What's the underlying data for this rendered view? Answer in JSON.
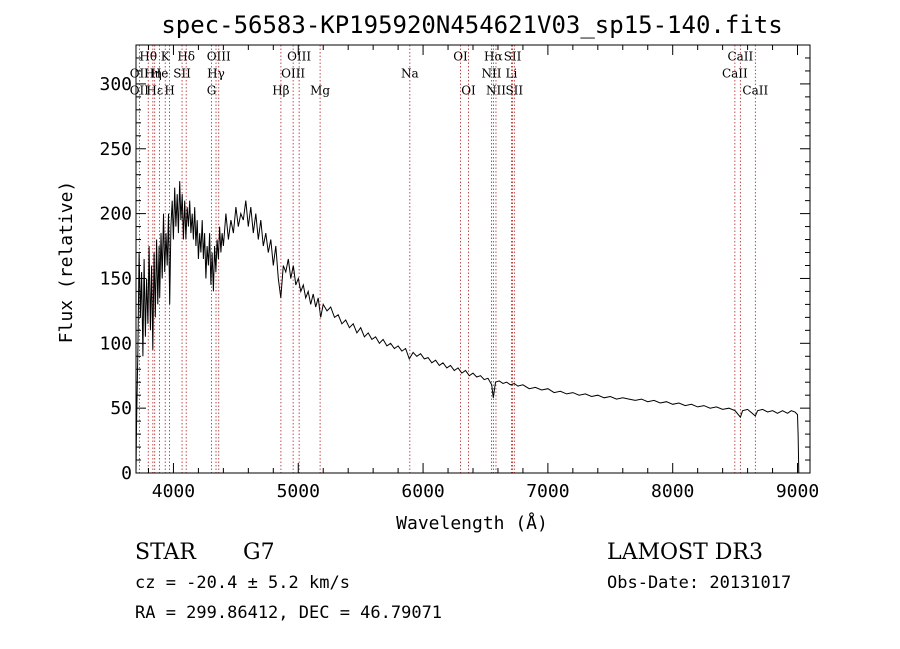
{
  "chart_data": {
    "type": "line",
    "title": "spec-56583-KP195920N454621V03_sp15-140.fits",
    "xlabel": "Wavelength (Å)",
    "ylabel": "Flux (relative)",
    "xlim": [
      3700,
      9100
    ],
    "ylim": [
      0,
      330
    ],
    "xticks": [
      4000,
      5000,
      6000,
      7000,
      8000,
      9000
    ],
    "yticks": [
      0,
      50,
      100,
      150,
      200,
      250,
      300
    ],
    "series": [
      {
        "name": "spectrum",
        "points": [
          [
            3700,
            0
          ],
          [
            3705,
            40
          ],
          [
            3715,
            95
          ],
          [
            3725,
            170
          ],
          [
            3735,
            120
          ],
          [
            3745,
            155
          ],
          [
            3755,
            90
          ],
          [
            3765,
            165
          ],
          [
            3775,
            105
          ],
          [
            3785,
            150
          ],
          [
            3795,
            115
          ],
          [
            3805,
            175
          ],
          [
            3815,
            110
          ],
          [
            3825,
            160
          ],
          [
            3835,
            95
          ],
          [
            3845,
            170
          ],
          [
            3855,
            120
          ],
          [
            3865,
            180
          ],
          [
            3875,
            130
          ],
          [
            3885,
            175
          ],
          [
            3890,
            135
          ],
          [
            3900,
            185
          ],
          [
            3910,
            150
          ],
          [
            3920,
            200
          ],
          [
            3930,
            155
          ],
          [
            3940,
            185
          ],
          [
            3950,
            160
          ],
          [
            3960,
            200
          ],
          [
            3970,
            130
          ],
          [
            3980,
            190
          ],
          [
            3990,
            210
          ],
          [
            4000,
            180
          ],
          [
            4010,
            220
          ],
          [
            4020,
            190
          ],
          [
            4030,
            215
          ],
          [
            4040,
            185
          ],
          [
            4050,
            225
          ],
          [
            4060,
            195
          ],
          [
            4070,
            215
          ],
          [
            4080,
            180
          ],
          [
            4090,
            210
          ],
          [
            4100,
            180
          ],
          [
            4110,
            205
          ],
          [
            4120,
            190
          ],
          [
            4130,
            210
          ],
          [
            4140,
            185
          ],
          [
            4150,
            200
          ],
          [
            4160,
            180
          ],
          [
            4170,
            205
          ],
          [
            4180,
            175
          ],
          [
            4190,
            195
          ],
          [
            4200,
            165
          ],
          [
            4210,
            185
          ],
          [
            4220,
            170
          ],
          [
            4230,
            195
          ],
          [
            4240,
            165
          ],
          [
            4250,
            185
          ],
          [
            4260,
            150
          ],
          [
            4270,
            175
          ],
          [
            4280,
            160
          ],
          [
            4290,
            185
          ],
          [
            4300,
            145
          ],
          [
            4310,
            170
          ],
          [
            4320,
            140
          ],
          [
            4330,
            175
          ],
          [
            4340,
            155
          ],
          [
            4350,
            180
          ],
          [
            4360,
            165
          ],
          [
            4370,
            190
          ],
          [
            4380,
            170
          ],
          [
            4390,
            185
          ],
          [
            4400,
            175
          ],
          [
            4420,
            200
          ],
          [
            4440,
            180
          ],
          [
            4460,
            195
          ],
          [
            4480,
            185
          ],
          [
            4500,
            205
          ],
          [
            4520,
            190
          ],
          [
            4540,
            200
          ],
          [
            4560,
            195
          ],
          [
            4580,
            210
          ],
          [
            4600,
            190
          ],
          [
            4620,
            205
          ],
          [
            4640,
            185
          ],
          [
            4660,
            200
          ],
          [
            4680,
            180
          ],
          [
            4700,
            195
          ],
          [
            4720,
            175
          ],
          [
            4740,
            185
          ],
          [
            4760,
            170
          ],
          [
            4780,
            180
          ],
          [
            4800,
            160
          ],
          [
            4820,
            175
          ],
          [
            4840,
            150
          ],
          [
            4860,
            135
          ],
          [
            4880,
            160
          ],
          [
            4900,
            155
          ],
          [
            4920,
            165
          ],
          [
            4940,
            150
          ],
          [
            4960,
            160
          ],
          [
            4980,
            145
          ],
          [
            5000,
            150
          ],
          [
            5020,
            140
          ],
          [
            5040,
            145
          ],
          [
            5060,
            135
          ],
          [
            5080,
            140
          ],
          [
            5100,
            130
          ],
          [
            5120,
            138
          ],
          [
            5140,
            128
          ],
          [
            5160,
            135
          ],
          [
            5180,
            120
          ],
          [
            5200,
            130
          ],
          [
            5230,
            125
          ],
          [
            5260,
            128
          ],
          [
            5290,
            120
          ],
          [
            5320,
            122
          ],
          [
            5350,
            115
          ],
          [
            5380,
            118
          ],
          [
            5410,
            112
          ],
          [
            5440,
            115
          ],
          [
            5470,
            108
          ],
          [
            5500,
            112
          ],
          [
            5530,
            105
          ],
          [
            5560,
            108
          ],
          [
            5590,
            103
          ],
          [
            5620,
            105
          ],
          [
            5650,
            100
          ],
          [
            5680,
            103
          ],
          [
            5710,
            98
          ],
          [
            5740,
            100
          ],
          [
            5770,
            96
          ],
          [
            5800,
            98
          ],
          [
            5830,
            94
          ],
          [
            5860,
            96
          ],
          [
            5890,
            88
          ],
          [
            5920,
            93
          ],
          [
            5950,
            90
          ],
          [
            5980,
            92
          ],
          [
            6010,
            88
          ],
          [
            6040,
            89
          ],
          [
            6070,
            85
          ],
          [
            6100,
            87
          ],
          [
            6130,
            83
          ],
          [
            6160,
            85
          ],
          [
            6190,
            81
          ],
          [
            6220,
            83
          ],
          [
            6250,
            79
          ],
          [
            6280,
            81
          ],
          [
            6310,
            77
          ],
          [
            6340,
            79
          ],
          [
            6370,
            75
          ],
          [
            6400,
            77
          ],
          [
            6430,
            74
          ],
          [
            6460,
            75
          ],
          [
            6490,
            72
          ],
          [
            6520,
            73
          ],
          [
            6550,
            68
          ],
          [
            6563,
            58
          ],
          [
            6580,
            70
          ],
          [
            6610,
            71
          ],
          [
            6640,
            69
          ],
          [
            6670,
            70
          ],
          [
            6700,
            68
          ],
          [
            6730,
            69
          ],
          [
            6760,
            67
          ],
          [
            6800,
            68
          ],
          [
            6850,
            65
          ],
          [
            6900,
            66
          ],
          [
            6950,
            64
          ],
          [
            7000,
            65
          ],
          [
            7050,
            62
          ],
          [
            7100,
            63
          ],
          [
            7150,
            61
          ],
          [
            7200,
            62
          ],
          [
            7250,
            60
          ],
          [
            7300,
            61
          ],
          [
            7350,
            59
          ],
          [
            7400,
            60
          ],
          [
            7450,
            58
          ],
          [
            7500,
            59
          ],
          [
            7550,
            57
          ],
          [
            7600,
            58
          ],
          [
            7650,
            57
          ],
          [
            7700,
            56
          ],
          [
            7750,
            57
          ],
          [
            7800,
            55
          ],
          [
            7850,
            56
          ],
          [
            7900,
            54
          ],
          [
            7950,
            55
          ],
          [
            8000,
            53
          ],
          [
            8050,
            54
          ],
          [
            8100,
            52
          ],
          [
            8150,
            53
          ],
          [
            8200,
            51
          ],
          [
            8250,
            52
          ],
          [
            8300,
            50
          ],
          [
            8350,
            51
          ],
          [
            8400,
            49
          ],
          [
            8450,
            50
          ],
          [
            8500,
            48
          ],
          [
            8542,
            43
          ],
          [
            8560,
            48
          ],
          [
            8600,
            49
          ],
          [
            8662,
            44
          ],
          [
            8680,
            48
          ],
          [
            8720,
            49
          ],
          [
            8760,
            47
          ],
          [
            8800,
            48
          ],
          [
            8840,
            46
          ],
          [
            8880,
            48
          ],
          [
            8920,
            46
          ],
          [
            8950,
            48
          ],
          [
            8980,
            47
          ],
          [
            9000,
            45
          ],
          [
            9005,
            30
          ],
          [
            9010,
            0
          ]
        ]
      }
    ],
    "spectral_lines": [
      {
        "label": "Hθ",
        "wavelength": 3798,
        "row": 1
      },
      {
        "label": "OII",
        "wavelength": 3727,
        "row": 2
      },
      {
        "label": "Hη",
        "wavelength": 3835,
        "row": 2
      },
      {
        "label": "OII",
        "wavelength": 3727,
        "row": 3
      },
      {
        "label": "Hε",
        "wavelength": 3850,
        "row": 3
      },
      {
        "label": "K",
        "wavelength": 3934,
        "row": 1
      },
      {
        "label": "He",
        "wavelength": 3889,
        "row": 2
      },
      {
        "label": "H",
        "wavelength": 3969,
        "row": 3
      },
      {
        "label": "Hδ",
        "wavelength": 4102,
        "row": 1
      },
      {
        "label": "SII",
        "wavelength": 4069,
        "row": 2
      },
      {
        "label": "OIII",
        "wavelength": 4363,
        "row": 1
      },
      {
        "label": "Hγ",
        "wavelength": 4341,
        "row": 2
      },
      {
        "label": "G",
        "wavelength": 4305,
        "row": 3
      },
      {
        "label": "Hβ",
        "wavelength": 4861,
        "row": 3
      },
      {
        "label": "OIII",
        "wavelength": 5007,
        "row": 1
      },
      {
        "label": "OIII",
        "wavelength": 4959,
        "row": 2
      },
      {
        "label": "Mg",
        "wavelength": 5175,
        "row": 3
      },
      {
        "label": "Na",
        "wavelength": 5894,
        "row": 2
      },
      {
        "label": "OI",
        "wavelength": 6300,
        "row": 1
      },
      {
        "label": "OI",
        "wavelength": 6364,
        "row": 3
      },
      {
        "label": "Hα",
        "wavelength": 6563,
        "row": 1
      },
      {
        "label": "NII",
        "wavelength": 6548,
        "row": 2
      },
      {
        "label": "NII",
        "wavelength": 6584,
        "row": 3
      },
      {
        "label": "SII",
        "wavelength": 6717,
        "row": 1
      },
      {
        "label": "Li",
        "wavelength": 6708,
        "row": 2
      },
      {
        "label": "SII",
        "wavelength": 6731,
        "row": 3
      },
      {
        "label": "CaII",
        "wavelength": 8542,
        "row": 1
      },
      {
        "label": "CaII",
        "wavelength": 8498,
        "row": 2
      },
      {
        "label": "CaII",
        "wavelength": 8662,
        "row": 3
      }
    ],
    "line_rows": {
      "1": 318,
      "2": 305,
      "3": 292
    }
  },
  "info": {
    "object_class": "STAR",
    "subclass": "G7",
    "survey": "LAMOST DR3",
    "cz": "cz = -20.4 ± 5.2 km/s",
    "obs_date": "Obs-Date: 20131017",
    "coords": "RA = 299.86412, DEC =  46.79071"
  },
  "colors": {
    "line_marker": "#b22222",
    "spectrum": "#000000",
    "axes": "#000000"
  }
}
